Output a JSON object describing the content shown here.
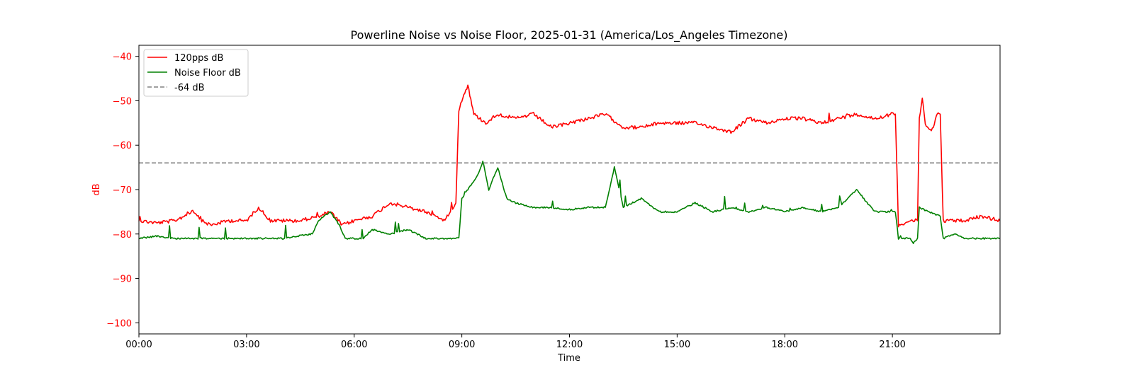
{
  "chart_data": {
    "type": "line",
    "title": "Powerline Noise vs Noise Floor, 2025-01-31 (America/Los_Angeles Timezone)",
    "xlabel": "Time",
    "ylabel": "dB",
    "x_unit": "time of day (HH:MM)",
    "xlim": [
      "00:00",
      "24:00"
    ],
    "ylim": [
      -102.5,
      -37.5
    ],
    "xticks": [
      "00:00",
      "03:00",
      "06:00",
      "09:00",
      "12:00",
      "15:00",
      "18:00",
      "21:00"
    ],
    "yticks": [
      -40,
      -50,
      -60,
      -70,
      -80,
      -90,
      -100
    ],
    "ytick_labels": [
      "−40",
      "−50",
      "−60",
      "−70",
      "−80",
      "−90",
      "−100"
    ],
    "grid": false,
    "legend_position": "upper-left",
    "legend": [
      "120pps dB",
      "Noise Floor dB",
      "-64 dB"
    ],
    "colors": {
      "signal": "#ff0000",
      "noise_floor": "#008000",
      "threshold": "#808080",
      "ylabel": "#ff0000",
      "yticks": "#ff0000"
    },
    "series": [
      {
        "name": "120pps dB",
        "color": "#ff0000",
        "points": [
          [
            "00:00",
            -77
          ],
          [
            "00:30",
            -77.5
          ],
          [
            "01:00",
            -77
          ],
          [
            "01:30",
            -75
          ],
          [
            "01:45",
            -77
          ],
          [
            "02:00",
            -78
          ],
          [
            "02:30",
            -77
          ],
          [
            "03:00",
            -77
          ],
          [
            "03:20",
            -74
          ],
          [
            "03:40",
            -77
          ],
          [
            "04:00",
            -77
          ],
          [
            "04:30",
            -77
          ],
          [
            "05:00",
            -76
          ],
          [
            "05:20",
            -75
          ],
          [
            "05:40",
            -78
          ],
          [
            "06:00",
            -77
          ],
          [
            "06:30",
            -76
          ],
          [
            "07:00",
            -73
          ],
          [
            "07:30",
            -74
          ],
          [
            "08:00",
            -75
          ],
          [
            "08:30",
            -77
          ],
          [
            "08:50",
            -73
          ],
          [
            "08:55",
            -52
          ],
          [
            "09:05",
            -48
          ],
          [
            "09:10",
            -46.5
          ],
          [
            "09:20",
            -53
          ],
          [
            "09:40",
            -55
          ],
          [
            "10:00",
            -53
          ],
          [
            "10:30",
            -54
          ],
          [
            "11:00",
            -53
          ],
          [
            "11:30",
            -56
          ],
          [
            "12:00",
            -55
          ],
          [
            "12:30",
            -54
          ],
          [
            "13:00",
            -53
          ],
          [
            "13:30",
            -56
          ],
          [
            "14:00",
            -56
          ],
          [
            "14:30",
            -55
          ],
          [
            "15:00",
            -55
          ],
          [
            "15:30",
            -55
          ],
          [
            "16:00",
            -56
          ],
          [
            "16:30",
            -57
          ],
          [
            "17:00",
            -54
          ],
          [
            "17:30",
            -55
          ],
          [
            "18:00",
            -54
          ],
          [
            "18:30",
            -54
          ],
          [
            "19:00",
            -55
          ],
          [
            "19:30",
            -54
          ],
          [
            "20:00",
            -53
          ],
          [
            "20:30",
            -54
          ],
          [
            "21:00",
            -53
          ],
          [
            "21:05",
            -53
          ],
          [
            "21:10",
            -78
          ],
          [
            "21:30",
            -77
          ],
          [
            "21:42",
            -77
          ],
          [
            "21:45",
            -54
          ],
          [
            "21:50",
            -49.5
          ],
          [
            "21:55",
            -55
          ],
          [
            "22:05",
            -57
          ],
          [
            "22:15",
            -53
          ],
          [
            "22:20",
            -53
          ],
          [
            "22:25",
            -77
          ],
          [
            "23:00",
            -77
          ],
          [
            "23:30",
            -76
          ],
          [
            "24:00",
            -77
          ]
        ]
      },
      {
        "name": "Noise Floor dB",
        "color": "#008000",
        "points": [
          [
            "00:00",
            -81
          ],
          [
            "00:30",
            -80.5
          ],
          [
            "01:00",
            -81
          ],
          [
            "02:00",
            -81
          ],
          [
            "03:00",
            -81
          ],
          [
            "04:00",
            -81
          ],
          [
            "04:50",
            -80
          ],
          [
            "05:00",
            -77
          ],
          [
            "05:20",
            -75
          ],
          [
            "05:35",
            -78
          ],
          [
            "05:45",
            -81
          ],
          [
            "06:15",
            -81
          ],
          [
            "06:30",
            -79
          ],
          [
            "07:00",
            -80
          ],
          [
            "07:30",
            -79
          ],
          [
            "08:00",
            -81
          ],
          [
            "08:30",
            -81
          ],
          [
            "08:55",
            -81
          ],
          [
            "09:00",
            -72
          ],
          [
            "09:10",
            -70
          ],
          [
            "09:30",
            -66
          ],
          [
            "09:35",
            -63.5
          ],
          [
            "09:45",
            -70
          ],
          [
            "10:00",
            -65
          ],
          [
            "10:15",
            -72
          ],
          [
            "10:30",
            -73
          ],
          [
            "11:00",
            -74
          ],
          [
            "11:30",
            -74
          ],
          [
            "12:00",
            -74.5
          ],
          [
            "12:30",
            -74
          ],
          [
            "13:00",
            -74
          ],
          [
            "13:15",
            -65
          ],
          [
            "13:30",
            -74
          ],
          [
            "14:00",
            -72
          ],
          [
            "14:30",
            -75
          ],
          [
            "15:00",
            -75
          ],
          [
            "15:30",
            -73
          ],
          [
            "16:00",
            -75
          ],
          [
            "16:30",
            -74
          ],
          [
            "17:00",
            -75
          ],
          [
            "17:30",
            -74
          ],
          [
            "18:00",
            -75
          ],
          [
            "18:30",
            -74
          ],
          [
            "19:00",
            -75
          ],
          [
            "19:30",
            -74
          ],
          [
            "20:00",
            -70
          ],
          [
            "20:30",
            -75
          ],
          [
            "21:00",
            -75
          ],
          [
            "21:05",
            -75
          ],
          [
            "21:10",
            -81
          ],
          [
            "21:30",
            -81
          ],
          [
            "21:35",
            -82
          ],
          [
            "21:42",
            -81
          ],
          [
            "21:45",
            -74
          ],
          [
            "22:00",
            -75
          ],
          [
            "22:20",
            -76
          ],
          [
            "22:25",
            -81
          ],
          [
            "22:45",
            -80
          ],
          [
            "23:00",
            -81
          ],
          [
            "24:00",
            -81
          ]
        ]
      },
      {
        "name": "-64 dB",
        "color": "#808080",
        "style": "dashed",
        "constant": -64
      }
    ]
  }
}
